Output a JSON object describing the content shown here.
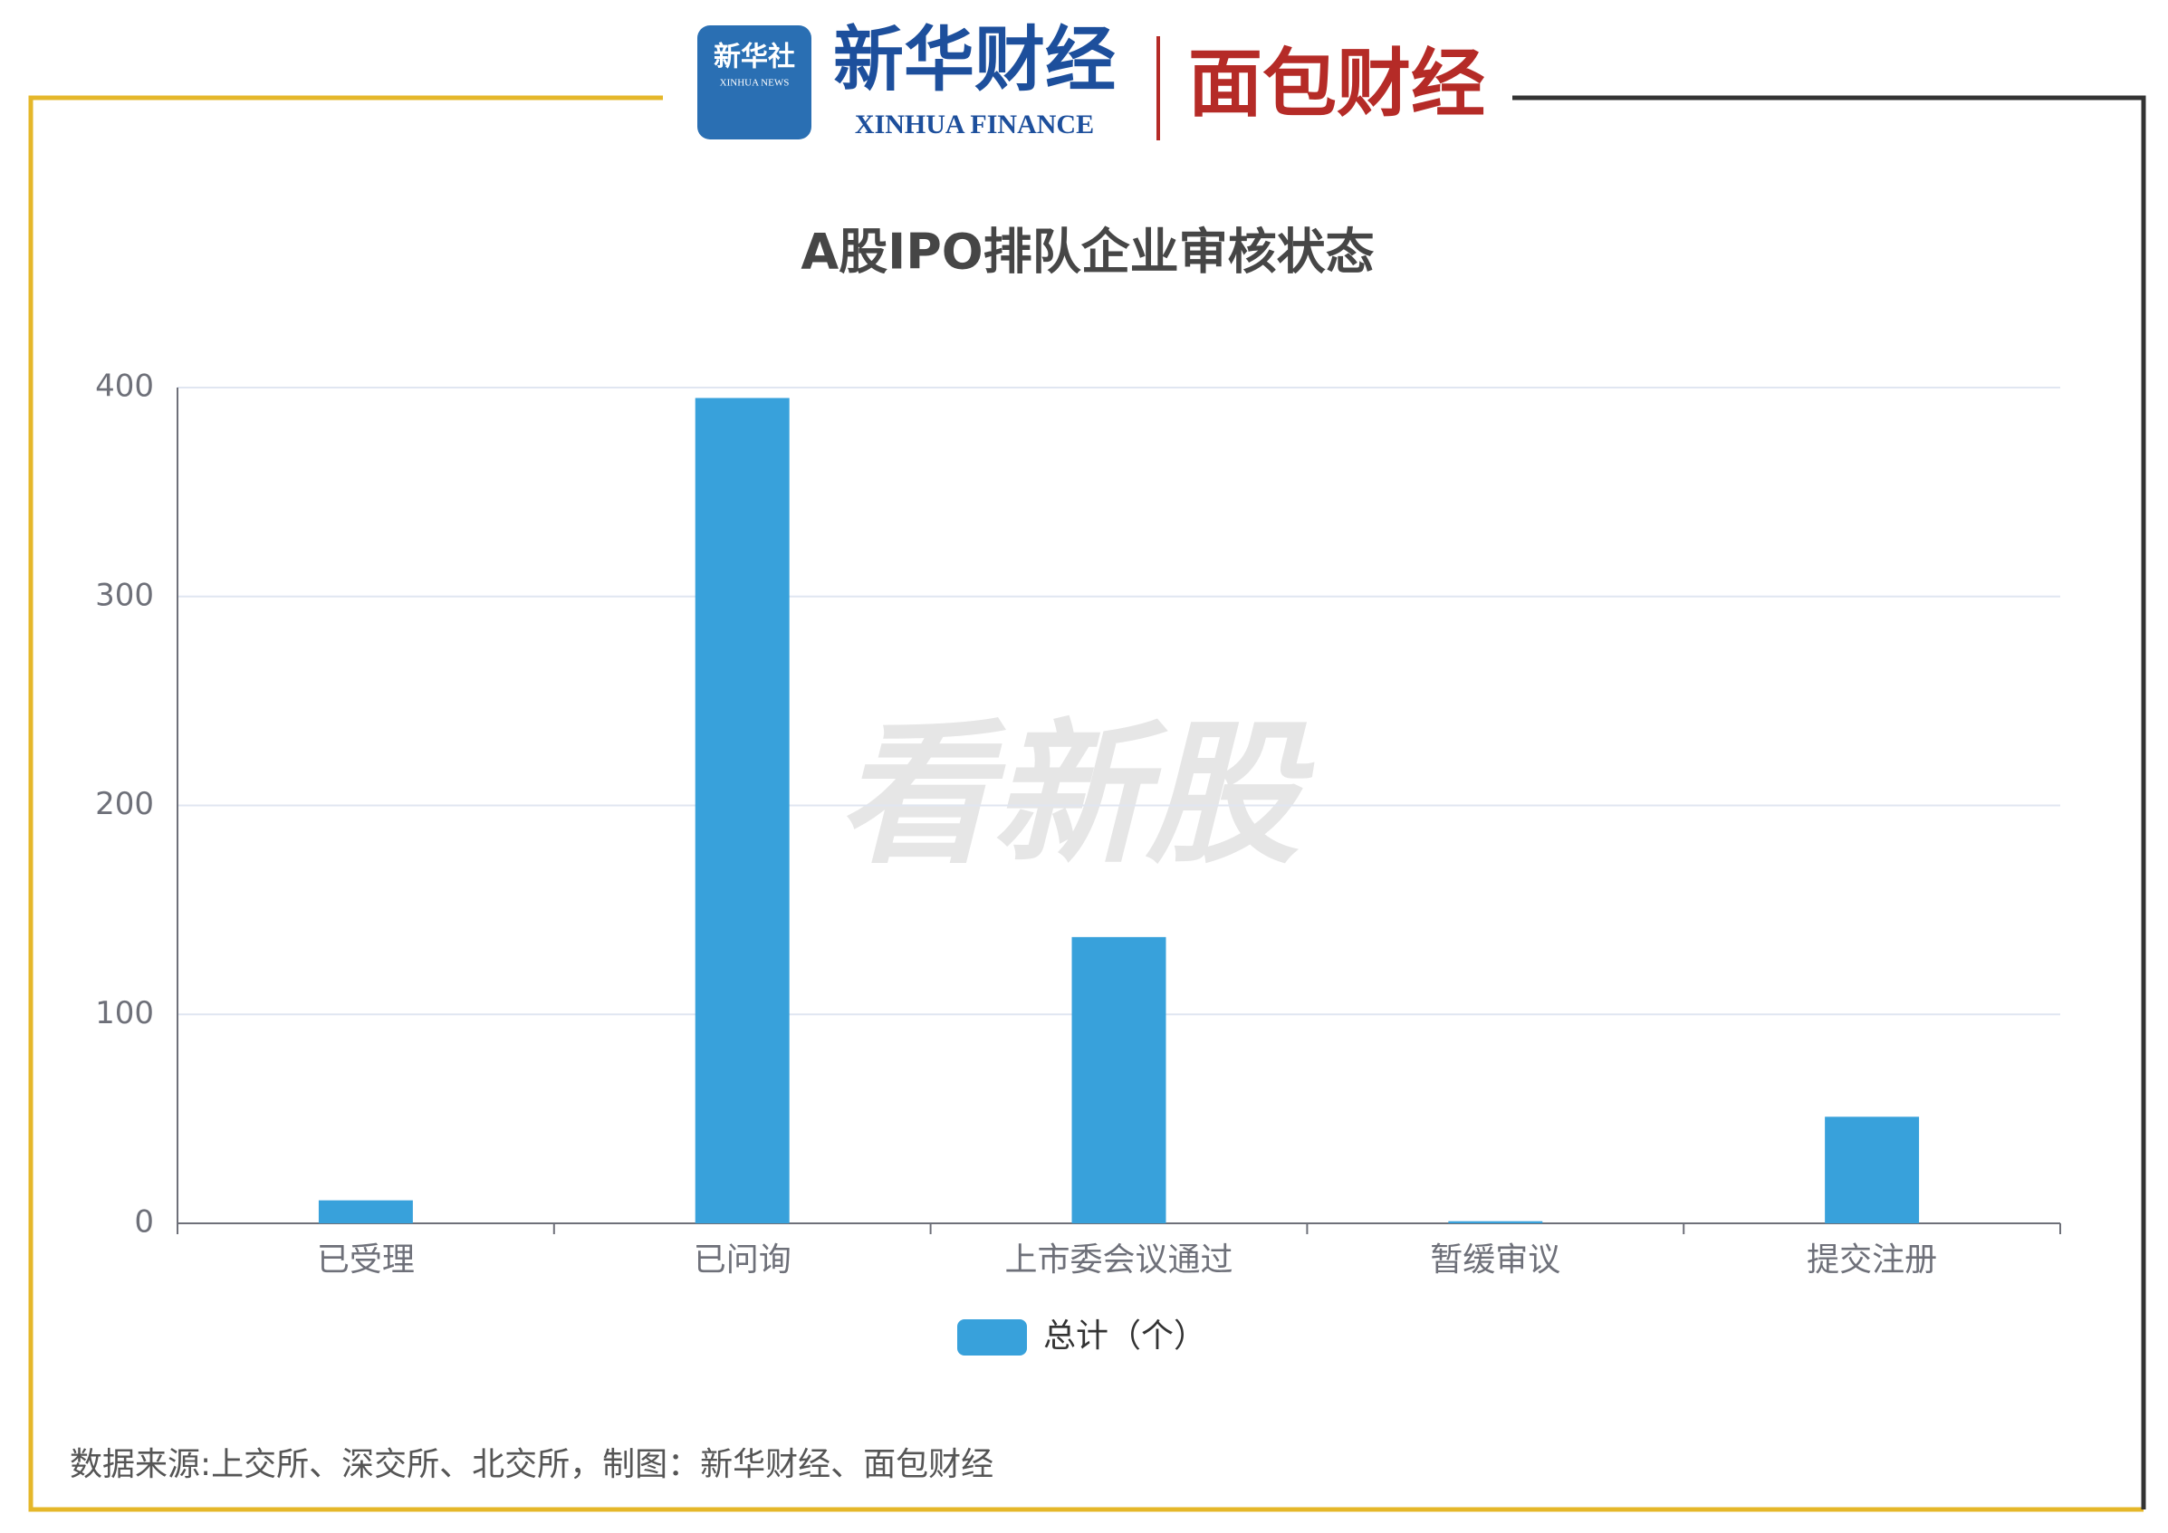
{
  "branding": {
    "xinhua_news_cn": "新华社",
    "xinhua_news_en": "XINHUA NEWS",
    "xinhua_finance_cn": "新华财经",
    "xinhua_finance_en": "XINHUA FINANCE",
    "mianbao": "面包财经",
    "watermark": "看新股"
  },
  "chart_data": {
    "type": "bar",
    "title": "A股IPO排队企业审核状态",
    "categories": [
      "已受理",
      "已问询",
      "上市委会议通过",
      "暂缓审议",
      "提交注册"
    ],
    "series": [
      {
        "name": "总计（个）",
        "color": "#38a1db",
        "values": [
          11,
          395,
          137,
          1,
          51
        ]
      }
    ],
    "ylim": [
      0,
      400
    ],
    "yticks": [
      0,
      100,
      200,
      300,
      400
    ],
    "grid": true,
    "legend": "bottom",
    "source": "数据来源:上交所、深交所、北交所，制图：新华财经、面包财经"
  }
}
